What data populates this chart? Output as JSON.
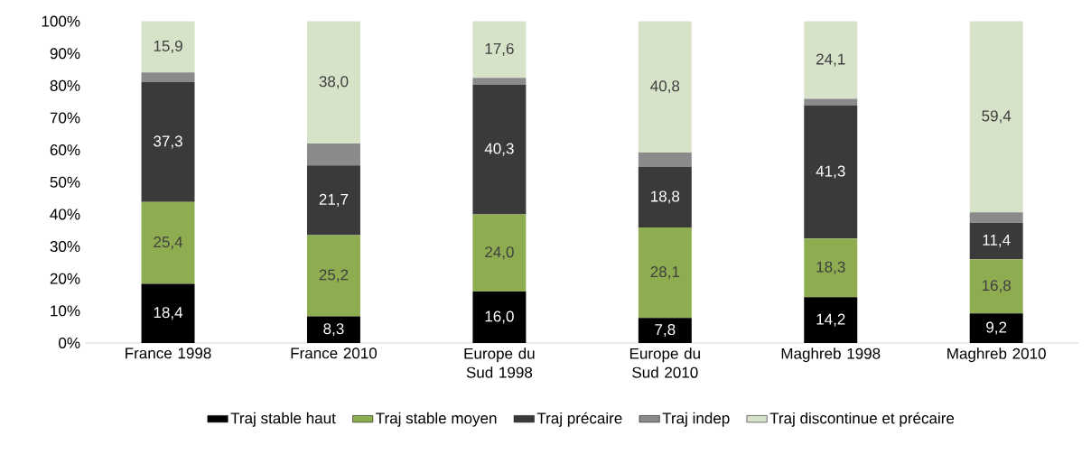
{
  "chart_data": {
    "type": "bar",
    "stacked": true,
    "legend": "bottom",
    "categories": [
      "France 1998",
      "France 2010",
      "Europe du Sud 1998",
      "Europe du Sud 2010",
      "Maghreb 1998",
      "Maghreb 2010"
    ],
    "ylim": [
      0,
      100
    ],
    "yticks": [
      {
        "value": 0,
        "label": "0%"
      },
      {
        "value": 10,
        "label": "10%"
      },
      {
        "value": 20,
        "label": "20%"
      },
      {
        "value": 30,
        "label": "30%"
      },
      {
        "value": 40,
        "label": "40%"
      },
      {
        "value": 50,
        "label": "50%"
      },
      {
        "value": 60,
        "label": "60%"
      },
      {
        "value": 70,
        "label": "70%"
      },
      {
        "value": 80,
        "label": "80%"
      },
      {
        "value": 90,
        "label": "90%"
      },
      {
        "value": 100,
        "label": "100%"
      }
    ],
    "series": [
      {
        "name": "Traj stable haut",
        "color": "#000000",
        "values": [
          18.4,
          8.3,
          16.0,
          7.8,
          14.2,
          9.2
        ],
        "value_labels": [
          "18,4",
          "8,3",
          "16,0",
          "7,8",
          "14,2",
          "9,2"
        ]
      },
      {
        "name": "Traj stable moyen",
        "color": "#8eac50",
        "values": [
          25.4,
          25.2,
          24.0,
          28.1,
          18.3,
          16.8
        ],
        "value_labels": [
          "25,4",
          "25,2",
          "24,0",
          "28,1",
          "18,3",
          "16,8"
        ]
      },
      {
        "name": "Traj précaire",
        "color": "#3a3a3a",
        "values": [
          37.3,
          21.7,
          40.3,
          18.8,
          41.3,
          11.4
        ],
        "value_labels": [
          "37,3",
          "21,7",
          "40,3",
          "18,8",
          "41,3",
          "11,4"
        ]
      },
      {
        "name": "Traj indep",
        "color": "#8a8a8a",
        "values": [
          3.0,
          6.8,
          2.1,
          4.5,
          2.1,
          3.2
        ]
      },
      {
        "name": "Traj discontinue et précaire",
        "color": "#d7e3c8",
        "values": [
          15.9,
          38.0,
          17.6,
          40.8,
          24.1,
          59.4
        ],
        "value_labels": [
          "15,9",
          "38,0",
          "17,6",
          "40,8",
          "24,1",
          "59,4"
        ]
      }
    ]
  }
}
